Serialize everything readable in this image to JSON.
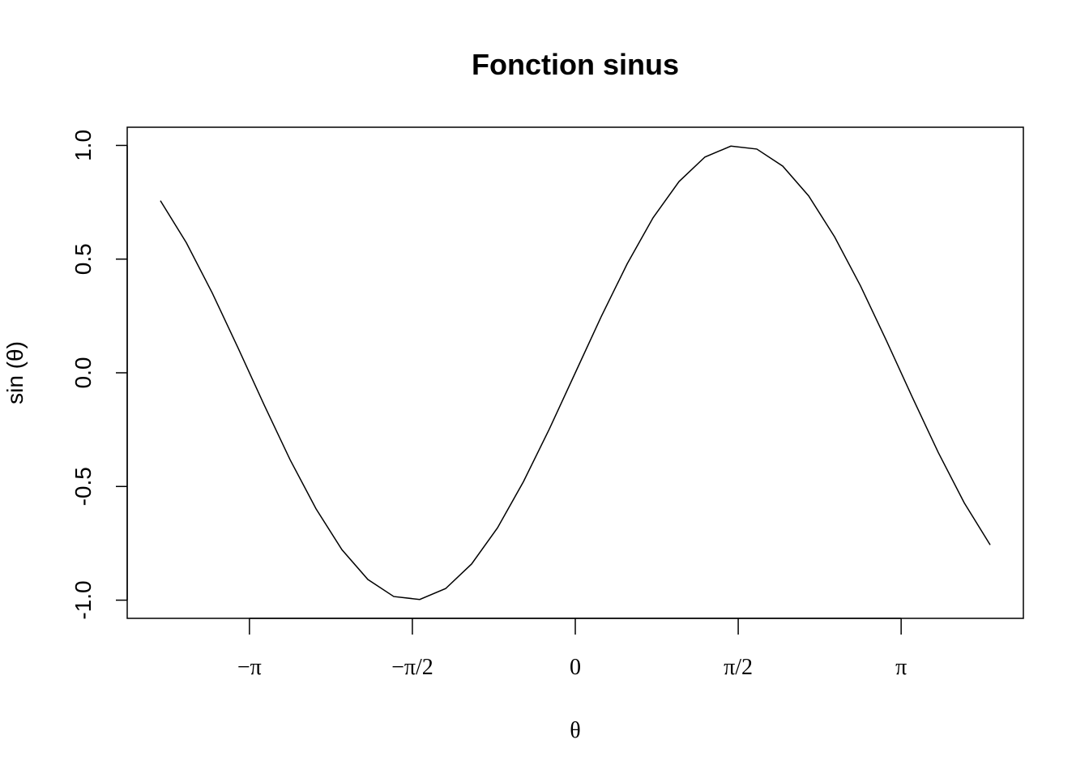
{
  "chart_data": {
    "type": "line",
    "title": "Fonction sinus",
    "xlabel": "θ",
    "ylabel": "sin (θ)",
    "xlim": [
      -4.0,
      4.0
    ],
    "ylim": [
      -1.0,
      1.0
    ],
    "x_ticks": [
      {
        "value": -3.14159,
        "label": "−π"
      },
      {
        "value": -1.5708,
        "label": "−π/2"
      },
      {
        "value": 0,
        "label": "0"
      },
      {
        "value": 1.5708,
        "label": "π/2"
      },
      {
        "value": 3.14159,
        "label": "π"
      }
    ],
    "y_ticks": [
      {
        "value": -1.0,
        "label": "-1.0"
      },
      {
        "value": -0.5,
        "label": "-0.5"
      },
      {
        "value": 0.0,
        "label": "0.0"
      },
      {
        "value": 0.5,
        "label": "0.5"
      },
      {
        "value": 1.0,
        "label": "1.0"
      }
    ],
    "grid": false,
    "series": [
      {
        "x": [
          -4.0,
          -3.75,
          -3.5,
          -3.25,
          -3.0,
          -2.75,
          -2.5,
          -2.25,
          -2.0,
          -1.75,
          -1.5,
          -1.25,
          -1.0,
          -0.75,
          -0.5,
          -0.25,
          0.0,
          0.25,
          0.5,
          0.75,
          1.0,
          1.25,
          1.5,
          1.75,
          2.0,
          2.25,
          2.5,
          2.75,
          3.0,
          3.25,
          3.5,
          3.75,
          4.0
        ],
        "y": [
          0.757,
          0.572,
          0.351,
          0.108,
          -0.141,
          -0.382,
          -0.598,
          -0.778,
          -0.909,
          -0.984,
          -0.997,
          -0.949,
          -0.841,
          -0.682,
          -0.479,
          -0.247,
          0.0,
          0.247,
          0.479,
          0.682,
          0.841,
          0.949,
          0.997,
          0.984,
          0.909,
          0.778,
          0.598,
          0.382,
          0.141,
          -0.108,
          -0.351,
          -0.572,
          -0.757
        ]
      }
    ]
  }
}
